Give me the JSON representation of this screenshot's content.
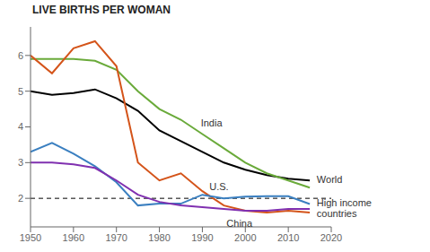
{
  "chart_data": {
    "type": "line",
    "title": "LIVE BIRTHS PER WOMAN",
    "x": [
      1950,
      1955,
      1960,
      1965,
      1970,
      1975,
      1980,
      1985,
      1990,
      1995,
      2000,
      2005,
      2010,
      2015
    ],
    "series": [
      {
        "name": "World",
        "color": "#000000",
        "values": [
          5.0,
          4.9,
          4.95,
          5.05,
          4.8,
          4.45,
          3.9,
          3.6,
          3.3,
          3.0,
          2.8,
          2.65,
          2.55,
          2.5
        ]
      },
      {
        "name": "India",
        "color": "#6aaa3a",
        "values": [
          5.9,
          5.9,
          5.9,
          5.85,
          5.6,
          5.0,
          4.5,
          4.2,
          3.8,
          3.4,
          3.0,
          2.7,
          2.5,
          2.3
        ]
      },
      {
        "name": "China",
        "color": "#d4541a",
        "values": [
          6.0,
          5.5,
          6.2,
          6.4,
          5.7,
          3.0,
          2.5,
          2.7,
          2.2,
          1.8,
          1.65,
          1.6,
          1.65,
          1.6
        ]
      },
      {
        "name": "U.S.",
        "color": "#3a7fc0",
        "values": [
          3.3,
          3.55,
          3.25,
          2.9,
          2.45,
          1.8,
          1.85,
          1.85,
          2.1,
          2.0,
          2.05,
          2.06,
          2.06,
          1.84
        ]
      },
      {
        "name": "High income countries",
        "color": "#8030b0",
        "values": [
          3.0,
          3.0,
          2.95,
          2.85,
          2.5,
          2.1,
          1.9,
          1.8,
          1.75,
          1.7,
          1.65,
          1.65,
          1.7,
          1.7
        ]
      }
    ],
    "reference_line": 2.0,
    "annotations": [
      {
        "text": "India",
        "x": 1989,
        "y": 3.95
      },
      {
        "text": "World",
        "x": 2016,
        "y": 2.53
      },
      {
        "text": "U.S.",
        "x": 1991,
        "y": 2.18
      },
      {
        "text": "China",
        "x": 1995,
        "y": 1.44
      },
      {
        "text": "High income\ncountries",
        "x": 2016,
        "y": 1.73
      }
    ],
    "xlim": [
      1950,
      2020
    ],
    "ylim": [
      1.2,
      6.8
    ],
    "xticks": [
      1950,
      1960,
      1970,
      1980,
      1990,
      2000,
      2010,
      2020
    ],
    "yticks": [
      2,
      3,
      4,
      5,
      6
    ],
    "grid": false
  }
}
